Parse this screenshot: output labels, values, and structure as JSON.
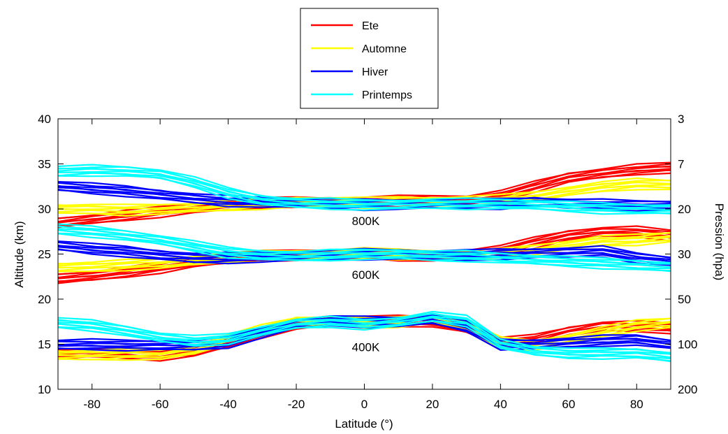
{
  "chart_data": {
    "type": "line",
    "xlabel": "Latitude (°)",
    "ylabel": "Altitude (km)",
    "y2label": "Pression (hpa)",
    "xlim": [
      -90,
      90
    ],
    "ylim": [
      10,
      40
    ],
    "xticks": [
      -80,
      -60,
      -40,
      -20,
      0,
      20,
      40,
      60,
      80
    ],
    "yticks": [
      10,
      15,
      20,
      25,
      30,
      35,
      40
    ],
    "y2ticks": [
      {
        "label": "3",
        "altitude": 40
      },
      {
        "label": "7",
        "altitude": 35
      },
      {
        "label": "20",
        "altitude": 30
      },
      {
        "label": "30",
        "altitude": 25
      },
      {
        "label": "50",
        "altitude": 20
      },
      {
        "label": "100",
        "altitude": 15
      },
      {
        "label": "200",
        "altitude": 10
      }
    ],
    "legend_position": "top-center",
    "grid": false,
    "x": [
      -90,
      -80,
      -70,
      -60,
      -50,
      -40,
      -30,
      -20,
      -10,
      0,
      10,
      20,
      30,
      40,
      50,
      60,
      70,
      80,
      90
    ],
    "series": [
      {
        "name": "Ete",
        "color": "#ff0000",
        "bands": [
          {
            "level": "800K",
            "values": [
              28.5,
              28.9,
              29.3,
              29.7,
              30.1,
              30.4,
              30.7,
              30.8,
              30.8,
              30.8,
              30.9,
              31.0,
              31.0,
              31.5,
              32.5,
              33.5,
              34.0,
              34.4,
              34.6
            ]
          },
          {
            "level": "600K",
            "values": [
              22.3,
              22.6,
              23.0,
              23.5,
              24.1,
              24.5,
              24.8,
              24.9,
              25.0,
              25.1,
              24.9,
              24.8,
              25.0,
              25.4,
              26.3,
              27.1,
              27.5,
              27.5,
              27.1
            ]
          },
          {
            "level": "400K",
            "values": [
              13.9,
              14.1,
              14.0,
              13.8,
              14.2,
              15.2,
              16.3,
              17.3,
              17.6,
              17.6,
              17.6,
              17.5,
              16.8,
              15.2,
              15.5,
              16.4,
              17.0,
              17.0,
              16.8
            ]
          }
        ]
      },
      {
        "name": "Automne",
        "color": "#ffff00",
        "bands": [
          {
            "level": "800K",
            "values": [
              30.0,
              30.0,
              29.9,
              30.0,
              30.2,
              30.4,
              30.6,
              30.8,
              30.8,
              30.7,
              30.8,
              30.8,
              30.9,
              31.0,
              31.4,
              32.0,
              32.5,
              32.8,
              32.7
            ]
          },
          {
            "level": "600K",
            "values": [
              23.5,
              23.6,
              23.8,
              24.0,
              24.3,
              24.6,
              24.8,
              24.9,
              25.0,
              25.1,
              25.0,
              24.9,
              24.9,
              25.0,
              25.5,
              26.0,
              26.5,
              26.6,
              26.9
            ]
          },
          {
            "level": "400K",
            "values": [
              13.8,
              13.8,
              13.9,
              13.9,
              14.4,
              15.5,
              16.6,
              17.5,
              17.6,
              17.4,
              17.5,
              17.9,
              17.1,
              15.2,
              14.9,
              15.6,
              16.4,
              17.1,
              17.4
            ]
          }
        ]
      },
      {
        "name": "Hiver",
        "color": "#0000ff",
        "bands": [
          {
            "level": "800K",
            "values": [
              32.6,
              32.3,
              32.0,
              31.6,
              31.2,
              30.9,
              30.8,
              30.7,
              30.6,
              30.5,
              30.5,
              30.6,
              30.6,
              30.6,
              30.8,
              30.6,
              30.5,
              30.4,
              30.4
            ]
          },
          {
            "level": "600K",
            "values": [
              26.0,
              25.6,
              25.3,
              24.9,
              24.6,
              24.6,
              24.7,
              24.8,
              24.9,
              25.0,
              25.0,
              24.9,
              24.9,
              25.0,
              25.1,
              25.2,
              25.3,
              24.6,
              24.2
            ]
          },
          {
            "level": "400K",
            "values": [
              15.0,
              15.0,
              14.9,
              14.9,
              14.9,
              15.2,
              16.3,
              17.3,
              17.6,
              17.5,
              17.5,
              17.8,
              17.0,
              15.0,
              15.0,
              15.2,
              15.4,
              15.5,
              15.0
            ]
          }
        ]
      },
      {
        "name": "Printemps",
        "color": "#00ffff",
        "bands": [
          {
            "level": "800K",
            "values": [
              34.2,
              34.3,
              34.2,
              33.9,
              33.0,
              31.8,
              31.0,
              30.7,
              30.6,
              30.5,
              30.5,
              30.6,
              30.6,
              30.6,
              30.5,
              30.3,
              30.1,
              30.0,
              30.0
            ]
          },
          {
            "level": "600K",
            "values": [
              27.8,
              27.5,
              27.1,
              26.6,
              25.9,
              25.2,
              24.9,
              24.8,
              24.9,
              25.0,
              25.0,
              24.8,
              24.8,
              24.6,
              24.4,
              24.2,
              24.0,
              23.8,
              23.6
            ]
          },
          {
            "level": "400K",
            "values": [
              17.4,
              17.1,
              16.5,
              15.8,
              15.4,
              15.6,
              16.5,
              17.3,
              17.5,
              17.2,
              17.5,
              18.1,
              17.6,
              15.1,
              14.3,
              14.0,
              14.0,
              14.0,
              13.6
            ]
          }
        ]
      }
    ],
    "annotations": [
      {
        "text": "800K",
        "x": 0,
        "y": 28.7
      },
      {
        "text": "600K",
        "x": 0,
        "y": 22.7
      },
      {
        "text": "400K",
        "x": 0,
        "y": 14.7
      }
    ]
  }
}
